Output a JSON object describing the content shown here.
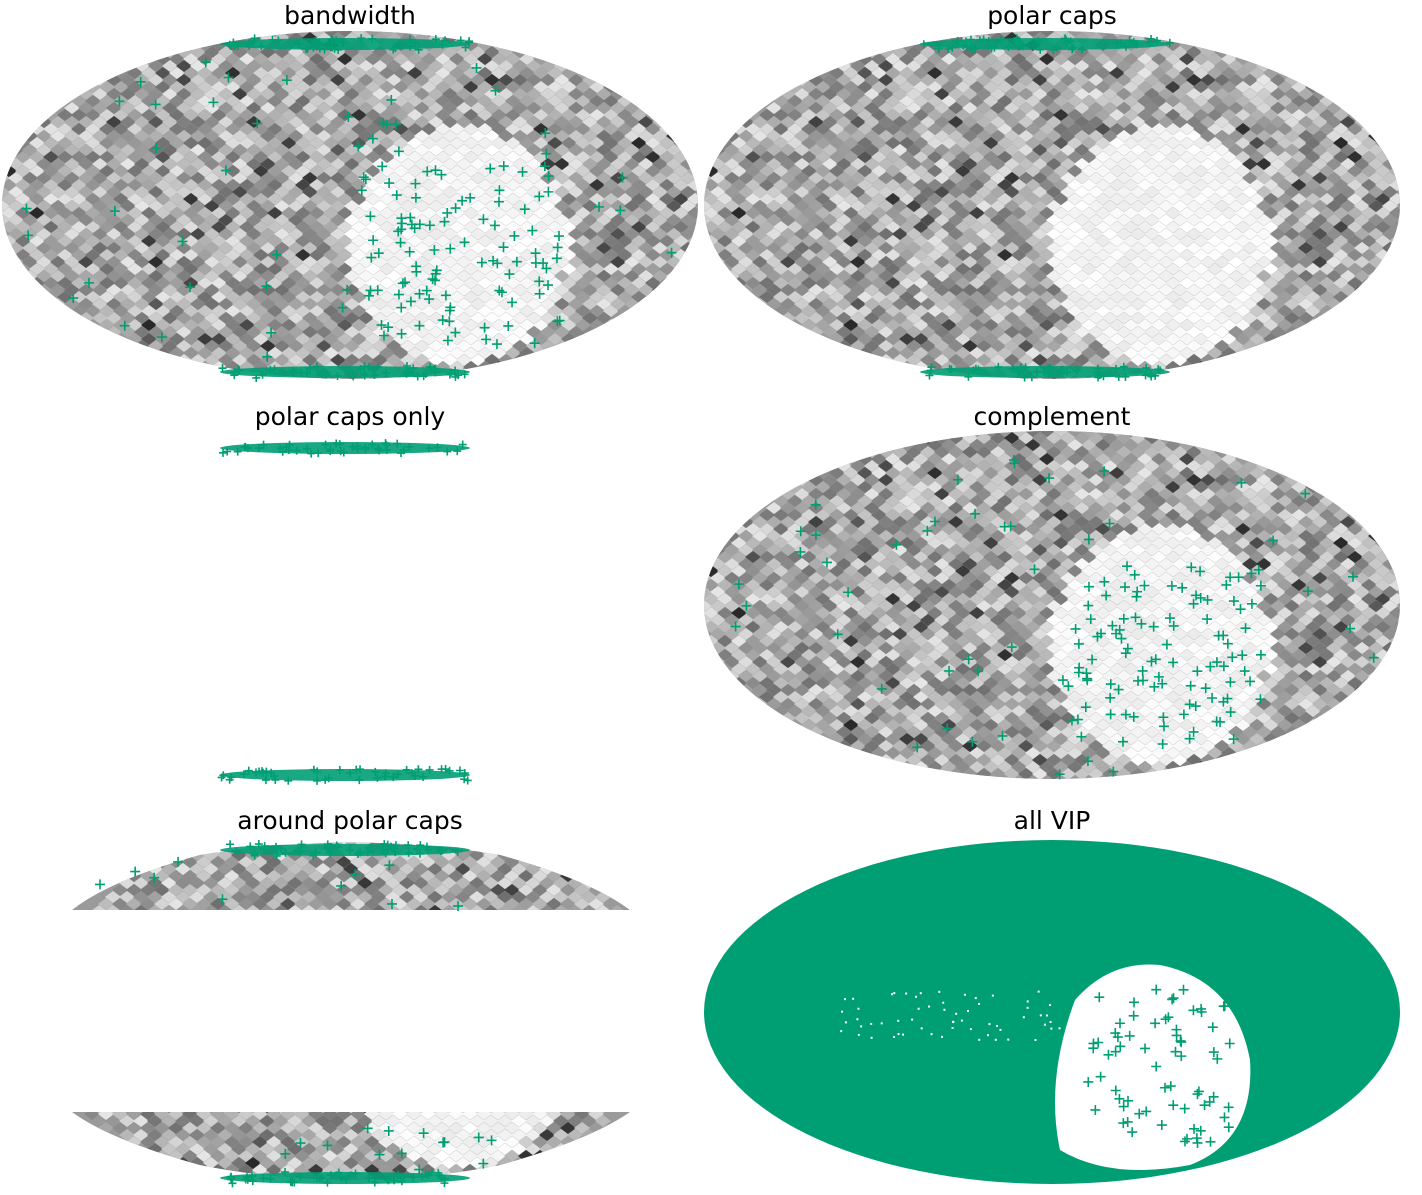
{
  "figure": {
    "layout": "3 rows x 2 columns of Mollweide sky maps",
    "colormap": "greys",
    "marker": "+",
    "marker_color": "#009e73",
    "panel_background": "#ffffff"
  },
  "chart_data": [
    {
      "type": "scatter",
      "projection": "mollweide",
      "title": "bandwidth",
      "map_region": "full-sky",
      "markers": "polar-cap bands plus scattered points, dense over the bright patch",
      "bright_patch": true
    },
    {
      "type": "scatter",
      "projection": "mollweide",
      "title": "polar caps",
      "map_region": "full-sky",
      "markers": "polar-cap bands only",
      "bright_patch": true
    },
    {
      "type": "scatter",
      "projection": "mollweide",
      "title": "polar caps only",
      "map_region": "none",
      "markers": "polar-cap bands only",
      "bright_patch": false
    },
    {
      "type": "scatter",
      "projection": "mollweide",
      "title": "complement",
      "map_region": "full-sky",
      "markers": "scattered points, dense over the bright patch, no polar bands",
      "bright_patch": true
    },
    {
      "type": "scatter",
      "projection": "mollweide",
      "title": "around polar caps",
      "map_region": "high-latitude bands",
      "markers": "polar-cap bands plus a few points",
      "bright_patch": true
    },
    {
      "type": "scatter",
      "projection": "mollweide",
      "title": "all VIP",
      "map_region": "full-sky",
      "markers": "markers cover the whole sky except the bright patch",
      "bright_patch": true
    }
  ]
}
